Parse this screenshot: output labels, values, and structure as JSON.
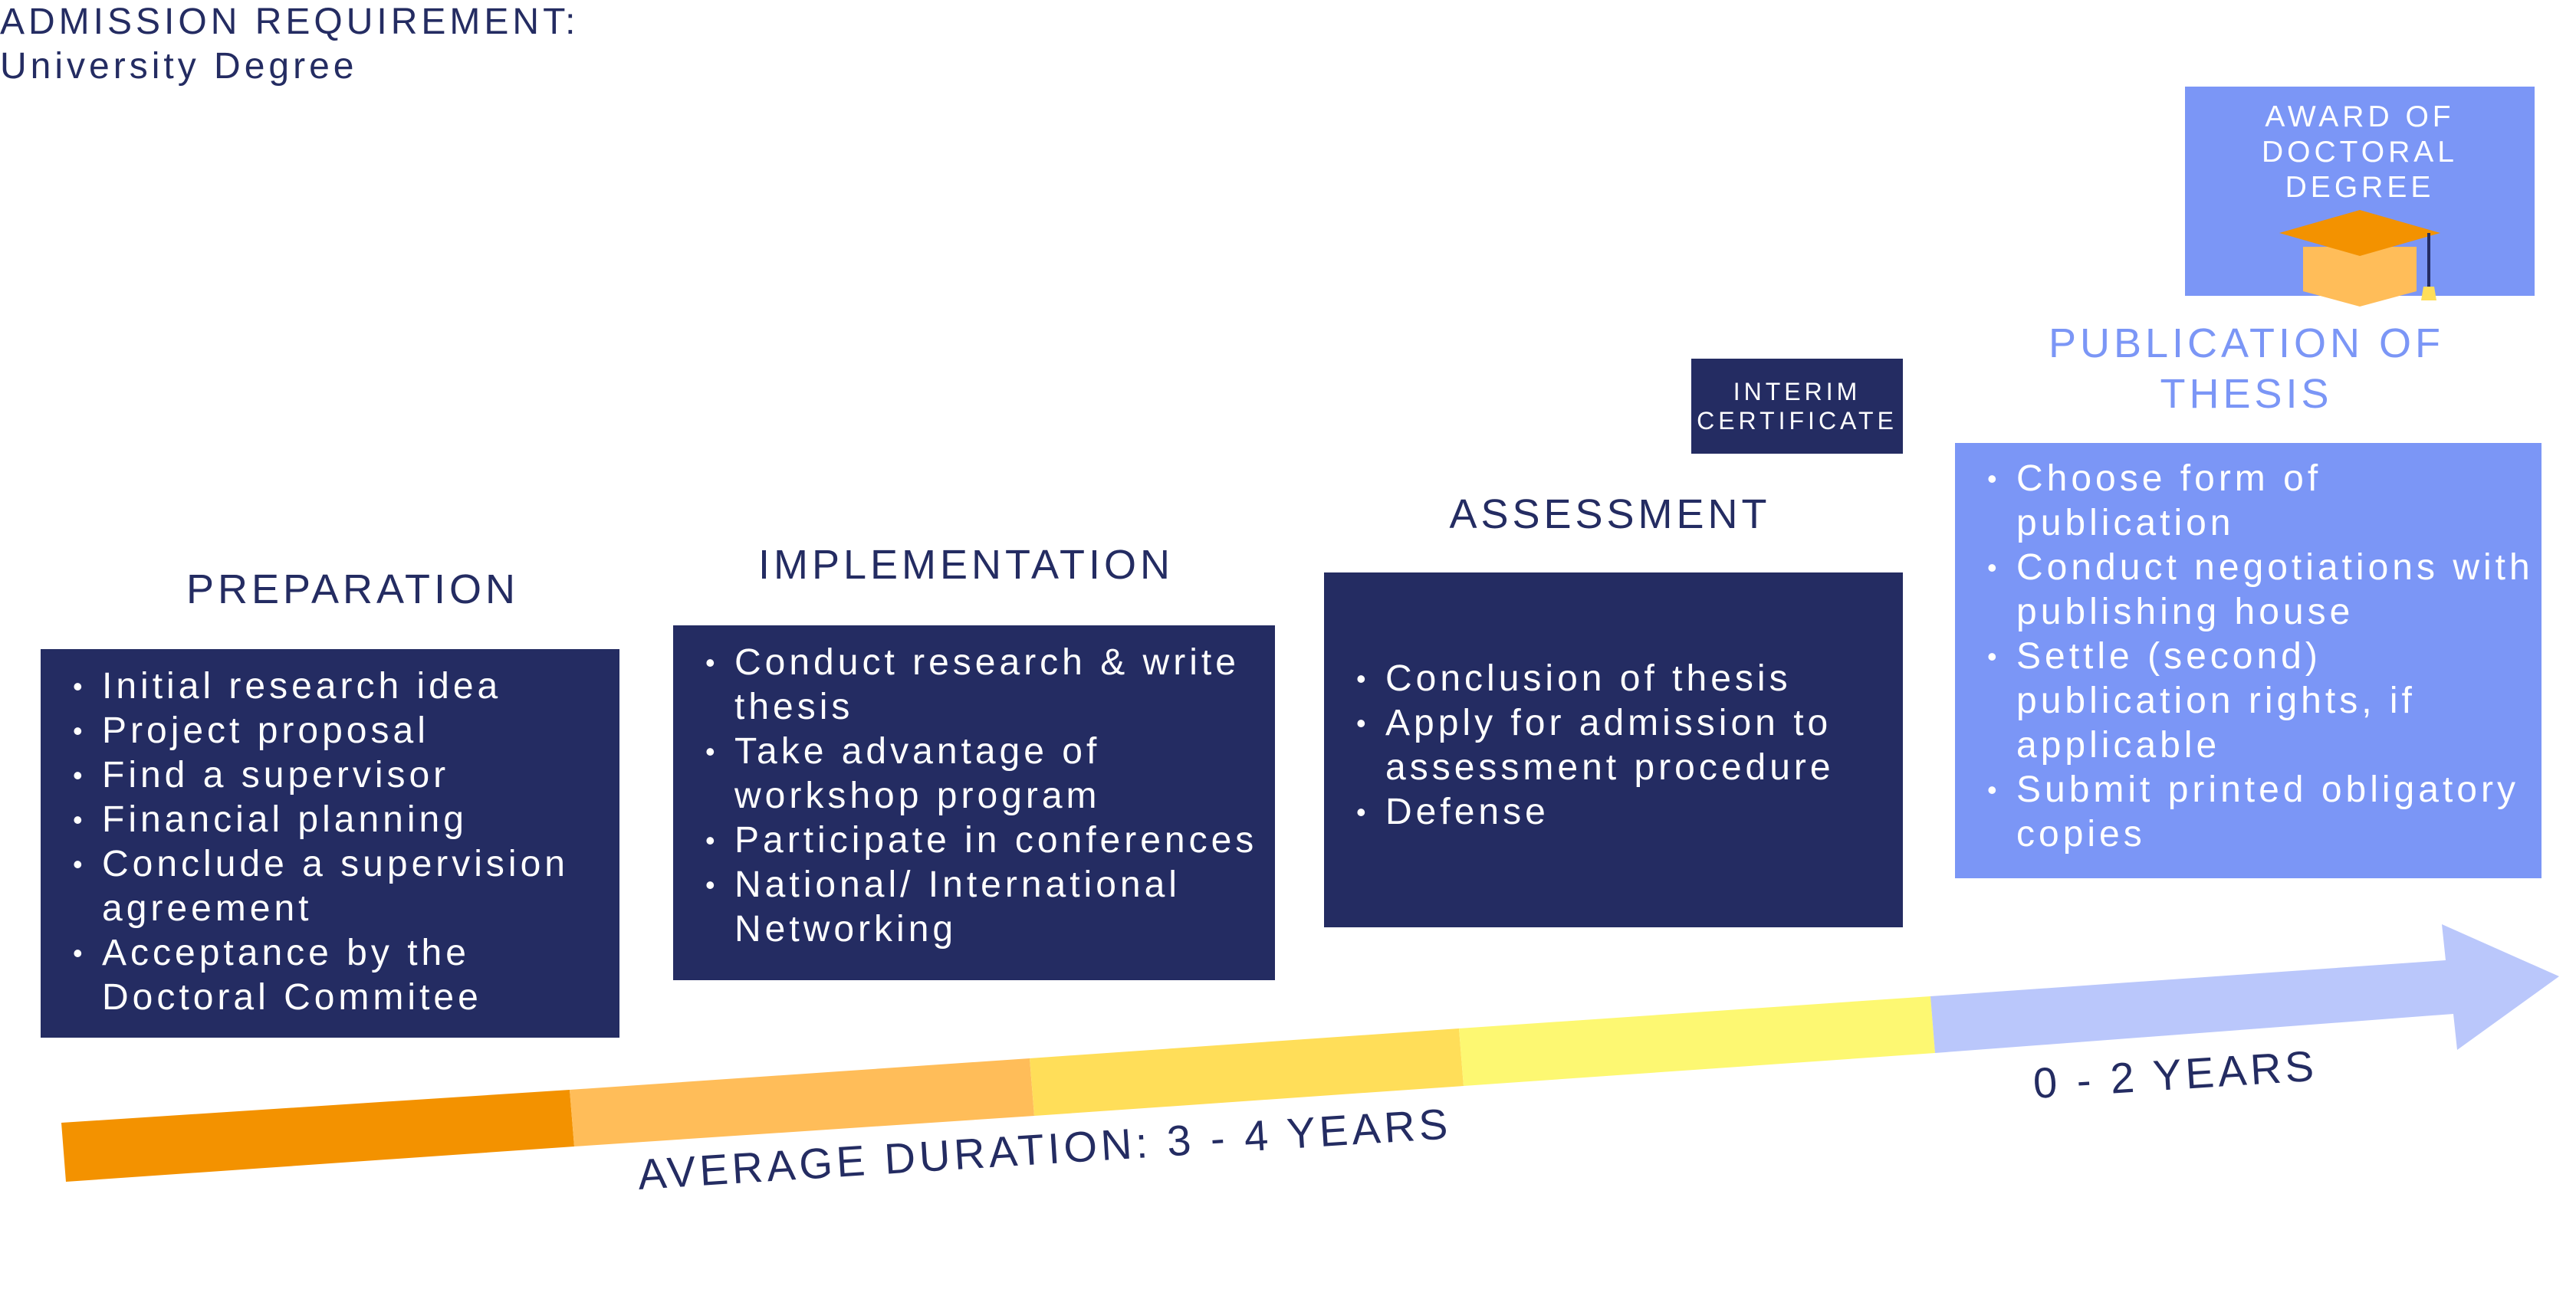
{
  "admission": {
    "line1": "ADMISSION REQUIREMENT:",
    "line2": "University Degree"
  },
  "award": {
    "line1": "AWARD OF",
    "line2": "DOCTORAL DEGREE",
    "icon": "graduation-cap-icon"
  },
  "interim": {
    "line1": "INTERIM",
    "line2": "CERTIFICATE"
  },
  "phases": {
    "preparation": {
      "title": "PREPARATION",
      "items": [
        "Initial research idea",
        "Project proposal",
        "Find a supervisor",
        "Financial planning",
        "Conclude a supervision agreement",
        "Acceptance by the Doctoral Commitee"
      ]
    },
    "implementation": {
      "title": "IMPLEMENTATION",
      "items": [
        "Conduct research & write thesis",
        "Take advantage of workshop program",
        "Participate in conferences",
        "National/ International Networking"
      ]
    },
    "assessment": {
      "title": "ASSESSMENT",
      "items": [
        "Conclusion of thesis",
        "Apply for admission to assessment procedure",
        "Defense"
      ]
    },
    "publication": {
      "title": "PUBLICATION OF THESIS",
      "items": [
        "Choose form of publication",
        "Conduct negotiations with publishing house",
        "Settle (second) publication rights, if applicable",
        "Submit printed obligatory copies"
      ]
    }
  },
  "timeline": {
    "average_duration": "AVERAGE DURATION: 3 - 4 YEARS",
    "publication_duration": "0 - 2 YEARS",
    "colors": [
      "#f39200",
      "#ffbd59",
      "#ffde59",
      "#fdf872",
      "#bac7fb"
    ]
  },
  "colors": {
    "navy": "#242c62",
    "blue": "#7b96f6",
    "orange": "#f39200"
  }
}
